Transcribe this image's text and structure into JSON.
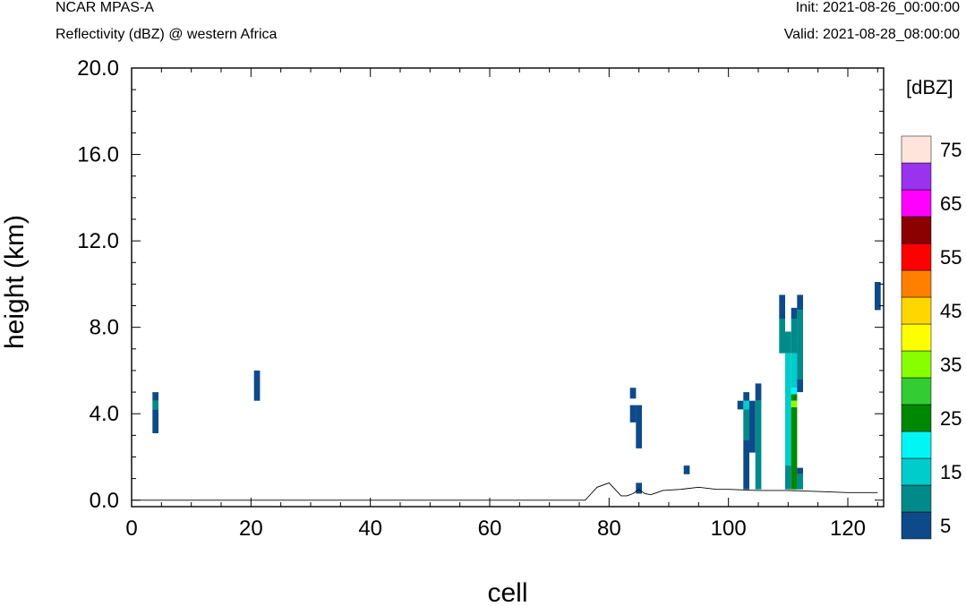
{
  "header": {
    "model": "NCAR MPAS-A",
    "field": "Reflectivity (dBZ) @ western Africa",
    "init": "Init: 2021-08-26_00:00:00",
    "valid": "Valid: 2021-08-28_08:00:00"
  },
  "chart_data": {
    "type": "heatmap",
    "title": "Reflectivity (dBZ) @ western Africa",
    "xlabel": "cell",
    "ylabel": "height (km)",
    "xlim": [
      0,
      126
    ],
    "ylim": [
      -0.3,
      20.0
    ],
    "xticks": [
      0,
      20,
      40,
      60,
      80,
      100,
      120
    ],
    "yticks": [
      0.0,
      4.0,
      8.0,
      12.0,
      16.0,
      20.0
    ],
    "ytick_labels": [
      "0.0",
      "4.0",
      "8.0",
      "12.0",
      "16.0",
      "20.0"
    ],
    "colorbar": {
      "unit": "[dBZ]",
      "levels": [
        5,
        10,
        15,
        20,
        25,
        30,
        35,
        40,
        45,
        50,
        55,
        60,
        65,
        70,
        75
      ],
      "labels": [
        5,
        15,
        25,
        35,
        45,
        55,
        65,
        75
      ],
      "colors": [
        "#0e4a8a",
        "#008a8a",
        "#00cccc",
        "#00f5f5",
        "#008800",
        "#33cc33",
        "#88ff00",
        "#ffff00",
        "#ffd700",
        "#ff8000",
        "#ff0000",
        "#8b0000",
        "#ff00ff",
        "#9933ee",
        "#ffe4dc"
      ]
    },
    "terrain": [
      [
        0,
        0
      ],
      [
        76,
        0
      ],
      [
        77,
        0.3
      ],
      [
        78,
        0.6
      ],
      [
        80,
        0.8
      ],
      [
        81,
        0.5
      ],
      [
        82,
        0.2
      ],
      [
        83,
        0.2
      ],
      [
        84,
        0.3
      ],
      [
        85,
        0.5
      ],
      [
        86,
        0.3
      ],
      [
        87,
        0.25
      ],
      [
        88,
        0.35
      ],
      [
        89,
        0.45
      ],
      [
        92,
        0.5
      ],
      [
        95,
        0.6
      ],
      [
        98,
        0.5
      ],
      [
        100,
        0.5
      ],
      [
        105,
        0.45
      ],
      [
        110,
        0.45
      ],
      [
        115,
        0.4
      ],
      [
        120,
        0.35
      ],
      [
        125,
        0.35
      ]
    ],
    "cells": [
      {
        "x": 4,
        "y0": 4.6,
        "y1": 5.0,
        "dbz": 5
      },
      {
        "x": 4,
        "y0": 4.2,
        "y1": 4.6,
        "dbz": 10
      },
      {
        "x": 4,
        "y0": 3.1,
        "y1": 4.2,
        "dbz": 5
      },
      {
        "x": 21,
        "y0": 4.6,
        "y1": 6.0,
        "dbz": 5
      },
      {
        "x": 84,
        "y0": 4.7,
        "y1": 5.2,
        "dbz": 5
      },
      {
        "x": 84,
        "y0": 3.6,
        "y1": 4.4,
        "dbz": 5
      },
      {
        "x": 85,
        "y0": 2.4,
        "y1": 4.4,
        "dbz": 5
      },
      {
        "x": 85,
        "y0": 0.3,
        "y1": 0.8,
        "dbz": 5
      },
      {
        "x": 93,
        "y0": 1.2,
        "y1": 1.6,
        "dbz": 5
      },
      {
        "x": 102,
        "y0": 4.2,
        "y1": 4.6,
        "dbz": 5
      },
      {
        "x": 103,
        "y0": 4.6,
        "y1": 5.0,
        "dbz": 5
      },
      {
        "x": 103,
        "y0": 4.2,
        "y1": 4.6,
        "dbz": 15
      },
      {
        "x": 103,
        "y0": 2.8,
        "y1": 4.2,
        "dbz": 10
      },
      {
        "x": 103,
        "y0": 0.5,
        "y1": 2.8,
        "dbz": 5
      },
      {
        "x": 104,
        "y0": 2.2,
        "y1": 4.6,
        "dbz": 5
      },
      {
        "x": 105,
        "y0": 4.6,
        "y1": 5.4,
        "dbz": 5
      },
      {
        "x": 105,
        "y0": 0.5,
        "y1": 4.6,
        "dbz": 10
      },
      {
        "x": 109,
        "y0": 8.4,
        "y1": 9.5,
        "dbz": 5
      },
      {
        "x": 109,
        "y0": 6.8,
        "y1": 8.4,
        "dbz": 10
      },
      {
        "x": 110,
        "y0": 6.8,
        "y1": 7.8,
        "dbz": 10
      },
      {
        "x": 110,
        "y0": 1.6,
        "y1": 6.8,
        "dbz": 15
      },
      {
        "x": 110,
        "y0": 0.5,
        "y1": 1.6,
        "dbz": 10
      },
      {
        "x": 111,
        "y0": 8.4,
        "y1": 8.9,
        "dbz": 5
      },
      {
        "x": 111,
        "y0": 6.8,
        "y1": 8.4,
        "dbz": 10
      },
      {
        "x": 111,
        "y0": 5.2,
        "y1": 6.8,
        "dbz": 15
      },
      {
        "x": 111,
        "y0": 4.9,
        "y1": 5.2,
        "dbz": 20
      },
      {
        "x": 111,
        "y0": 4.6,
        "y1": 4.9,
        "dbz": 25
      },
      {
        "x": 111,
        "y0": 4.3,
        "y1": 4.6,
        "dbz": 35
      },
      {
        "x": 111,
        "y0": 0.5,
        "y1": 4.3,
        "dbz": 25
      },
      {
        "x": 112,
        "y0": 8.8,
        "y1": 9.5,
        "dbz": 5
      },
      {
        "x": 112,
        "y0": 5.6,
        "y1": 8.8,
        "dbz": 10
      },
      {
        "x": 112,
        "y0": 5.0,
        "y1": 5.6,
        "dbz": 5
      },
      {
        "x": 112,
        "y0": 1.2,
        "y1": 1.5,
        "dbz": 5
      },
      {
        "x": 112,
        "y0": 0.5,
        "y1": 1.2,
        "dbz": 10
      },
      {
        "x": 125,
        "y0": 8.8,
        "y1": 10.1,
        "dbz": 5
      }
    ]
  }
}
